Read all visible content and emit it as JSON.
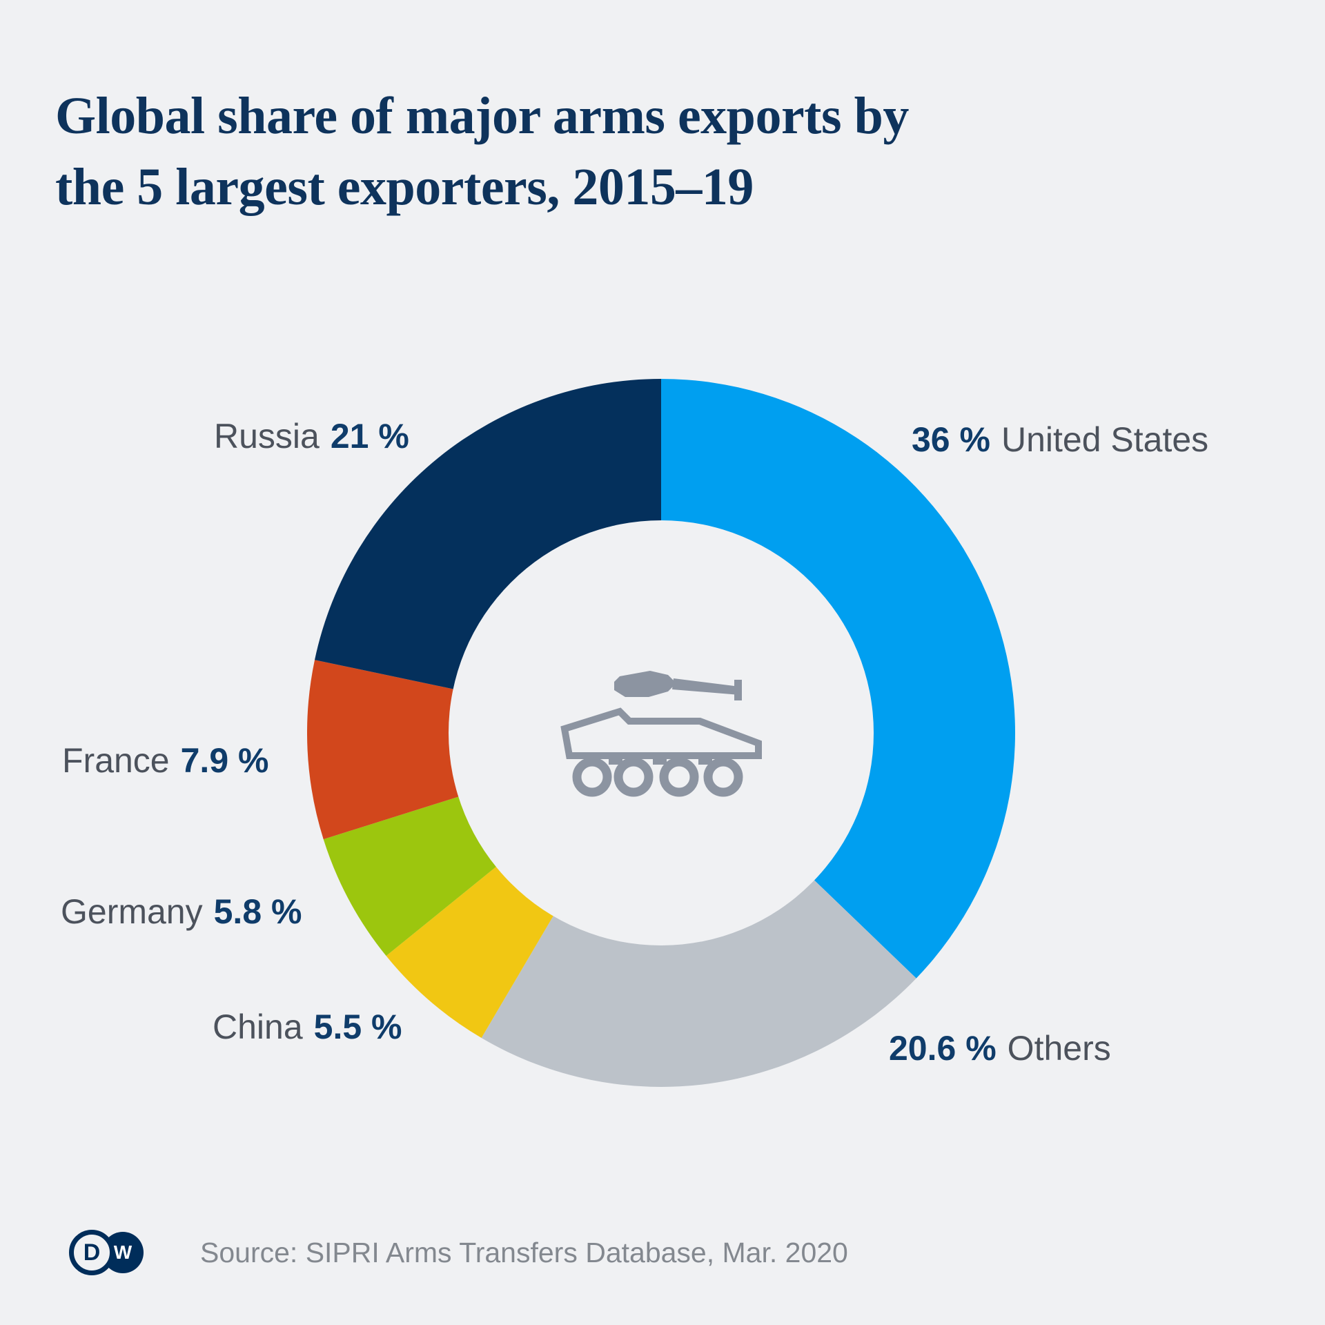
{
  "page": {
    "background": "#f0f1f3",
    "title": "Global share of major arms exports by\nthe 5 largest exporters, 2015–19",
    "title_color": "#0e335c",
    "source": "Source: SIPRI Arms Transfers Database, Mar. 2020",
    "logo": {
      "letter_left": "D",
      "letter_right": "W",
      "brand_color": "#002d5a"
    }
  },
  "chart_data": {
    "type": "pie",
    "variant": "donut",
    "title": "Global share of major arms exports by the 5 largest exporters, 2015–19",
    "unit": "%",
    "start_angle": "top",
    "direction": "clockwise",
    "hole_ratio": 0.6,
    "center_icon": "armored-vehicle-icon",
    "legend_position": "callout-labels-around-ring",
    "segments": [
      {
        "id": "united-states",
        "label": "United States",
        "value": 36,
        "display": "36 %",
        "color": "#009ff0",
        "label_style": "pct-first"
      },
      {
        "id": "others",
        "label": "Others",
        "value": 20.6,
        "display": "20.6 %",
        "color": "#bcc2c9",
        "label_style": "pct-first"
      },
      {
        "id": "china",
        "label": "China",
        "value": 5.5,
        "display": "5.5 %",
        "color": "#f1c713",
        "label_style": "name-first"
      },
      {
        "id": "germany",
        "label": "Germany",
        "value": 5.8,
        "display": "5.8 %",
        "color": "#9cc60e",
        "label_style": "name-first"
      },
      {
        "id": "france",
        "label": "France",
        "value": 7.9,
        "display": "7.9 %",
        "color": "#d2471c",
        "label_style": "name-first"
      },
      {
        "id": "russia",
        "label": "Russia",
        "value": 21,
        "display": "21 %",
        "color": "#04305c",
        "label_style": "name-first"
      }
    ]
  }
}
